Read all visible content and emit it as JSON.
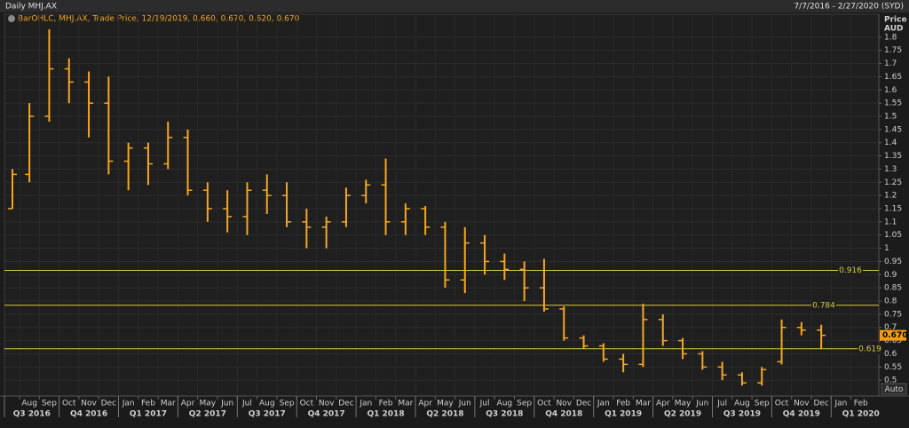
{
  "chart_data": {
    "type": "ohlc",
    "title": "Daily MHJ.AX",
    "date_range": "7/7/2016 - 2/27/2020 (SYD)",
    "legend_text": "BarOHLC, MHJ.AX, Trade Price, 12/19/2019, 0.660, 0.670, 0.620, 0.670",
    "y_label": "Price",
    "y_unit": "AUD",
    "auto_button": "Auto",
    "x": [
      "2016-07",
      "2016-08",
      "2016-09",
      "2016-10",
      "2016-11",
      "2016-12",
      "2017-01",
      "2017-02",
      "2017-03",
      "2017-04",
      "2017-05",
      "2017-06",
      "2017-07",
      "2017-08",
      "2017-09",
      "2017-10",
      "2017-11",
      "2017-12",
      "2018-01",
      "2018-02",
      "2018-03",
      "2018-04",
      "2018-05",
      "2018-06",
      "2018-07",
      "2018-08",
      "2018-09",
      "2018-10",
      "2018-11",
      "2018-12",
      "2019-01",
      "2019-02",
      "2019-03",
      "2019-04",
      "2019-05",
      "2019-06",
      "2019-07",
      "2019-08",
      "2019-09",
      "2019-10",
      "2019-11",
      "2019-12"
    ],
    "series": [
      {
        "color": "#f5a623",
        "open": [
          1.15,
          1.28,
          1.5,
          1.68,
          1.63,
          1.55,
          1.33,
          1.38,
          1.32,
          1.42,
          1.22,
          1.15,
          1.12,
          1.22,
          1.2,
          1.1,
          1.08,
          1.1,
          1.2,
          1.24,
          1.1,
          1.15,
          1.08,
          0.88,
          1.02,
          0.95,
          0.92,
          0.85,
          0.77,
          0.66,
          0.63,
          0.58,
          0.56,
          0.73,
          0.65,
          0.6,
          0.55,
          0.52,
          0.49,
          0.57,
          0.7,
          0.69
        ],
        "high": [
          1.3,
          1.55,
          1.83,
          1.72,
          1.67,
          1.65,
          1.4,
          1.4,
          1.48,
          1.45,
          1.25,
          1.22,
          1.25,
          1.28,
          1.25,
          1.15,
          1.12,
          1.23,
          1.26,
          1.34,
          1.17,
          1.16,
          1.1,
          1.08,
          1.05,
          0.98,
          0.95,
          0.96,
          0.78,
          0.67,
          0.64,
          0.6,
          0.79,
          0.75,
          0.66,
          0.61,
          0.57,
          0.53,
          0.55,
          0.73,
          0.72,
          0.71
        ],
        "low": [
          1.15,
          1.25,
          1.48,
          1.55,
          1.42,
          1.28,
          1.22,
          1.24,
          1.3,
          1.2,
          1.1,
          1.06,
          1.05,
          1.13,
          1.08,
          1.0,
          1.0,
          1.08,
          1.17,
          1.05,
          1.05,
          1.05,
          0.85,
          0.83,
          0.9,
          0.88,
          0.8,
          0.76,
          0.65,
          0.62,
          0.57,
          0.53,
          0.55,
          0.63,
          0.58,
          0.54,
          0.5,
          0.48,
          0.48,
          0.56,
          0.67,
          0.62
        ],
        "close": [
          1.28,
          1.5,
          1.68,
          1.63,
          1.55,
          1.33,
          1.38,
          1.32,
          1.42,
          1.22,
          1.15,
          1.12,
          1.22,
          1.2,
          1.1,
          1.08,
          1.1,
          1.2,
          1.24,
          1.1,
          1.15,
          1.08,
          0.88,
          1.02,
          0.95,
          0.92,
          0.85,
          0.77,
          0.66,
          0.63,
          0.58,
          0.56,
          0.73,
          0.65,
          0.6,
          0.55,
          0.52,
          0.49,
          0.54,
          0.7,
          0.69,
          0.67
        ]
      }
    ],
    "ylim": [
      0.44,
      1.85
    ],
    "yticks": [
      0.5,
      0.55,
      0.6,
      0.65,
      0.7,
      0.75,
      0.8,
      0.85,
      0.9,
      0.95,
      1,
      1.05,
      1.1,
      1.15,
      1.2,
      1.25,
      1.3,
      1.35,
      1.4,
      1.45,
      1.5,
      1.55,
      1.6,
      1.65,
      1.7,
      1.75,
      1.8
    ],
    "grid": true,
    "levels": [
      0.916,
      0.784,
      0.619
    ],
    "level_color": "#d8cc3c",
    "last_price": {
      "value": 0.67,
      "label": "0.670"
    },
    "month_ticks": [
      {
        "value": "2016-08",
        "label": "Aug"
      },
      {
        "value": "2016-09",
        "label": "Sep"
      },
      {
        "value": "2016-10",
        "label": "Oct"
      },
      {
        "value": "2016-11",
        "label": "Nov"
      },
      {
        "value": "2016-12",
        "label": "Dec"
      },
      {
        "value": "2017-01",
        "label": "Jan"
      },
      {
        "value": "2017-02",
        "label": "Feb"
      },
      {
        "value": "2017-03",
        "label": "Mar"
      },
      {
        "value": "2017-04",
        "label": "Apr"
      },
      {
        "value": "2017-05",
        "label": "May"
      },
      {
        "value": "2017-06",
        "label": "Jun"
      },
      {
        "value": "2017-07",
        "label": "Jul"
      },
      {
        "value": "2017-08",
        "label": "Aug"
      },
      {
        "value": "2017-09",
        "label": "Sep"
      },
      {
        "value": "2017-10",
        "label": "Oct"
      },
      {
        "value": "2017-11",
        "label": "Nov"
      },
      {
        "value": "2017-12",
        "label": "Dec"
      },
      {
        "value": "2018-01",
        "label": "Jan"
      },
      {
        "value": "2018-02",
        "label": "Feb"
      },
      {
        "value": "2018-03",
        "label": "Mar"
      },
      {
        "value": "2018-04",
        "label": "Apr"
      },
      {
        "value": "2018-05",
        "label": "May"
      },
      {
        "value": "2018-06",
        "label": "Jun"
      },
      {
        "value": "2018-07",
        "label": "Jul"
      },
      {
        "value": "2018-08",
        "label": "Aug"
      },
      {
        "value": "2018-09",
        "label": "Sep"
      },
      {
        "value": "2018-10",
        "label": "Oct"
      },
      {
        "value": "2018-11",
        "label": "Nov"
      },
      {
        "value": "2018-12",
        "label": "Dec"
      },
      {
        "value": "2019-01",
        "label": "Jan"
      },
      {
        "value": "2019-02",
        "label": "Feb"
      },
      {
        "value": "2019-03",
        "label": "Mar"
      },
      {
        "value": "2019-04",
        "label": "Apr"
      },
      {
        "value": "2019-05",
        "label": "May"
      },
      {
        "value": "2019-06",
        "label": "Jun"
      },
      {
        "value": "2019-07",
        "label": "Jul"
      },
      {
        "value": "2019-08",
        "label": "Aug"
      },
      {
        "value": "2019-09",
        "label": "Sep"
      },
      {
        "value": "2019-10",
        "label": "Oct"
      },
      {
        "value": "2019-11",
        "label": "Nov"
      },
      {
        "value": "2019-12",
        "label": "Dec"
      },
      {
        "value": "2020-01",
        "label": "Jan"
      },
      {
        "value": "2020-02",
        "label": "Feb"
      }
    ],
    "quarter_ticks": [
      {
        "value": "2016-07",
        "label": "Q3 2016"
      },
      {
        "value": "2016-10",
        "label": "Q4 2016"
      },
      {
        "value": "2017-01",
        "label": "Q1 2017"
      },
      {
        "value": "2017-04",
        "label": "Q2 2017"
      },
      {
        "value": "2017-07",
        "label": "Q3 2017"
      },
      {
        "value": "2017-10",
        "label": "Q4 2017"
      },
      {
        "value": "2018-01",
        "label": "Q1 2018"
      },
      {
        "value": "2018-04",
        "label": "Q2 2018"
      },
      {
        "value": "2018-07",
        "label": "Q3 2018"
      },
      {
        "value": "2018-10",
        "label": "Q4 2018"
      },
      {
        "value": "2019-01",
        "label": "Q1 2019"
      },
      {
        "value": "2019-04",
        "label": "Q2 2019"
      },
      {
        "value": "2019-07",
        "label": "Q3 2019"
      },
      {
        "value": "2019-10",
        "label": "Q4 2019"
      },
      {
        "value": "2020-01",
        "label": "Q1 2020"
      }
    ]
  }
}
